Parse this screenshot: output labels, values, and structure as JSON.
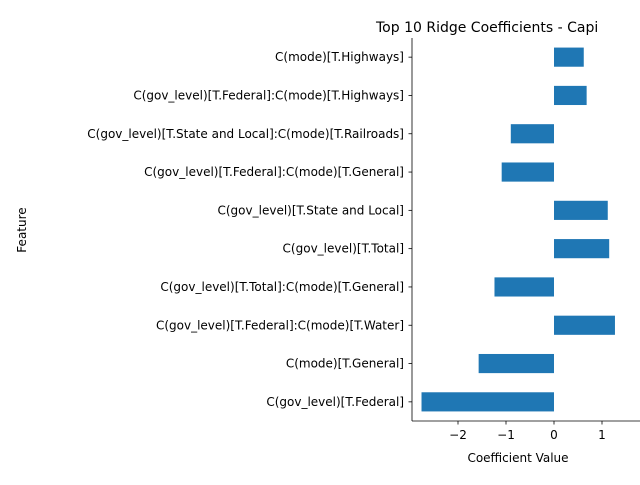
{
  "chart_data": {
    "type": "bar",
    "orientation": "horizontal",
    "title": "Top 10 Ridge Coefficients - Capi",
    "xlabel": "Coefficient Value",
    "ylabel": "Feature",
    "xlim": [
      -2.9,
      1.5
    ],
    "xticks": [
      -2,
      -1,
      0,
      1
    ],
    "xtick_labels": [
      "−2",
      "−1",
      "0",
      "1"
    ],
    "grid": false,
    "bar_color": "#1f77b4",
    "categories": [
      "C(mode)[T.Highways]",
      "C(gov_level)[T.Federal]:C(mode)[T.Highways]",
      "C(gov_level)[T.State and Local]:C(mode)[T.Railroads]",
      "C(gov_level)[T.Federal]:C(mode)[T.General]",
      "C(gov_level)[T.State and Local]",
      "C(gov_level)[T.Total]",
      "C(gov_level)[T.Total]:C(mode)[T.General]",
      "C(gov_level)[T.Federal]:C(mode)[T.Water]",
      "C(mode)[T.General]",
      "C(gov_level)[T.Federal]"
    ],
    "values": [
      0.62,
      0.68,
      -0.9,
      -1.09,
      1.12,
      1.15,
      -1.24,
      1.27,
      -1.57,
      -2.76
    ]
  }
}
